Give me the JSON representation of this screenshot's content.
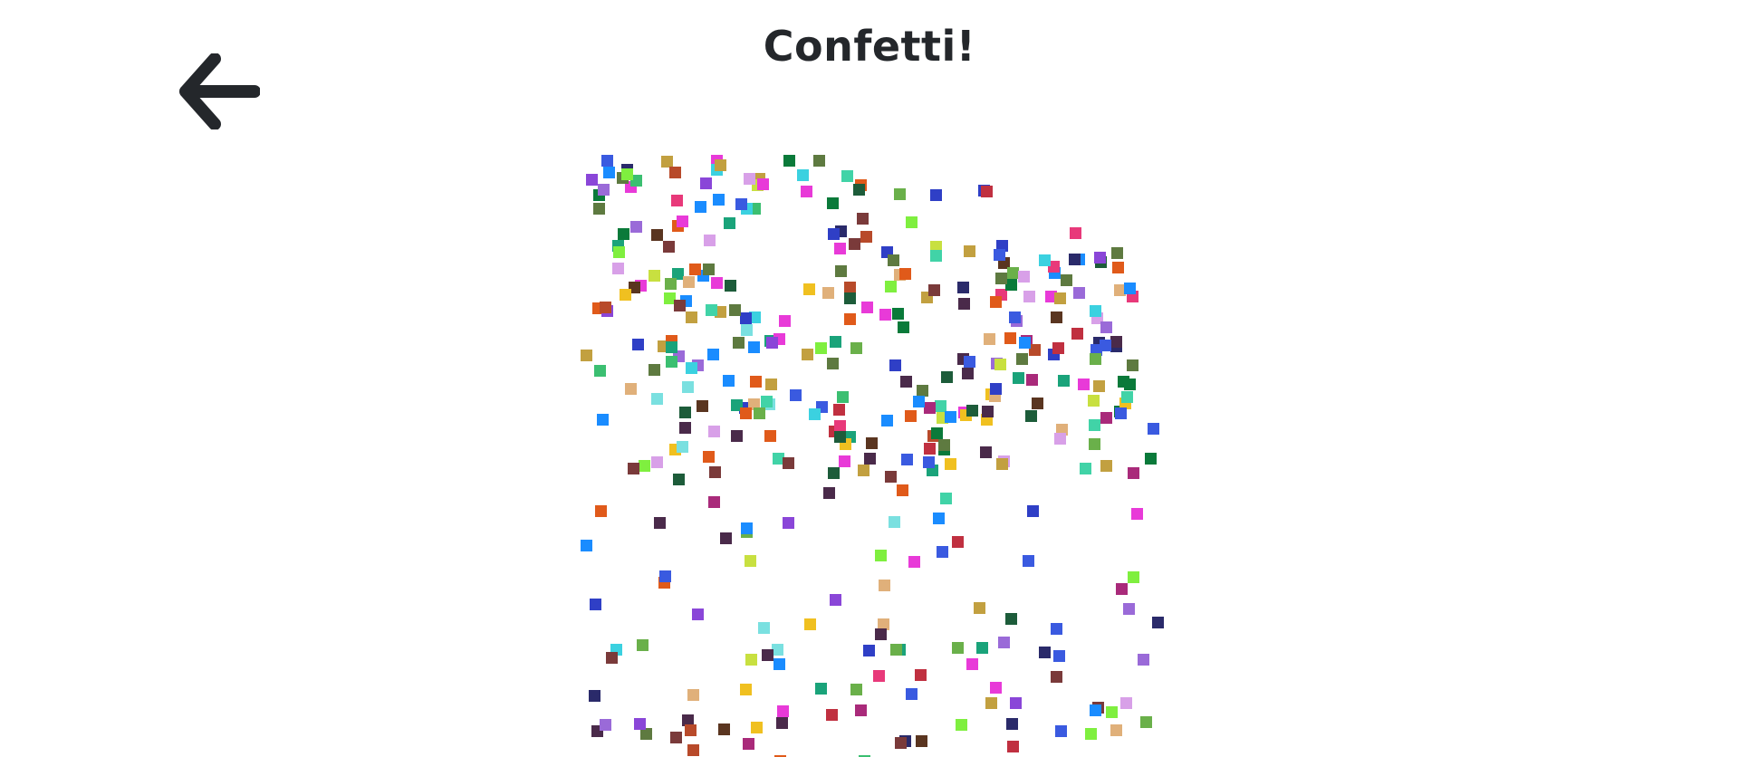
{
  "header": {
    "title": "Confetti!",
    "back_icon": "arrow-left-icon"
  },
  "confetti": {
    "seed": 7,
    "count": 380,
    "colors": [
      "#e83ad8",
      "#5a3520",
      "#3bbf71",
      "#1d5c3a",
      "#a92a7a",
      "#7fef3f",
      "#c2a040",
      "#2f3fc6",
      "#41d3a7",
      "#c8e040",
      "#e8397a",
      "#8a46d8",
      "#1a8cff",
      "#b84a2a",
      "#3bd1e0",
      "#5e7a40",
      "#e05a1a",
      "#2a2a6a",
      "#9a6ad8",
      "#1aa37a",
      "#e0b07a",
      "#4a2a4a",
      "#7ae0e0",
      "#c03040",
      "#6ab04a",
      "#3a5ae0",
      "#d8a0e8",
      "#0a7a3a",
      "#f0c020",
      "#7a3a3a"
    ]
  }
}
